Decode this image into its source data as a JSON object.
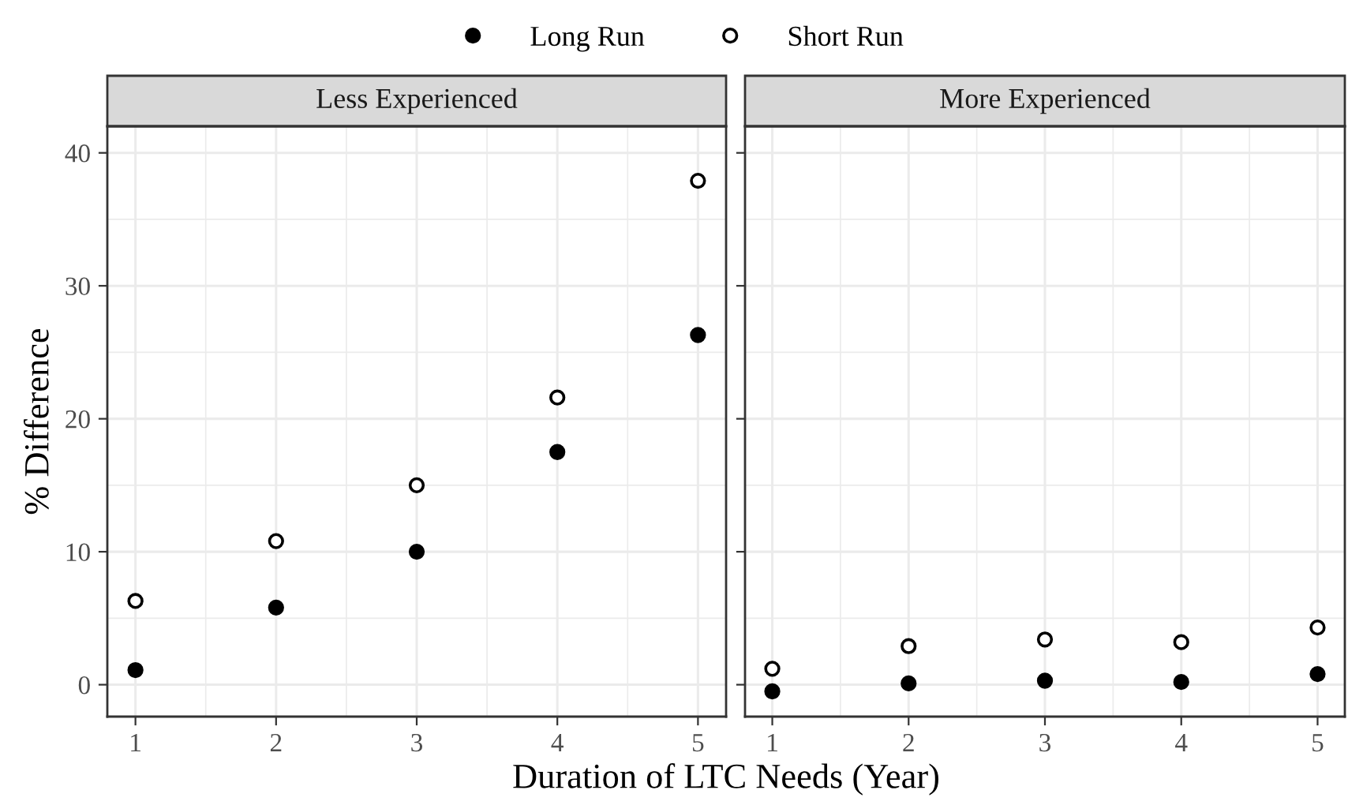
{
  "chart_data": [
    {
      "type": "scatter",
      "title": "Less Experienced",
      "xlabel": "Duration of LTC Needs (Year)",
      "ylabel": "% Difference",
      "x": [
        1,
        2,
        3,
        4,
        5
      ],
      "xlim": [
        0.8,
        5.2
      ],
      "xticks": [
        1,
        2,
        3,
        4,
        5
      ],
      "ylim": [
        -2.4,
        42
      ],
      "yticks": [
        0,
        10,
        20,
        30,
        40
      ],
      "grid": true,
      "marker": "circle",
      "legend": "top",
      "series": [
        {
          "name": "Long Run",
          "color": "#000000",
          "values": [
            1.1,
            5.8,
            10.0,
            17.5,
            26.3
          ]
        },
        {
          "name": "Short Run",
          "color": "#ffffff",
          "values": [
            6.3,
            10.8,
            15.0,
            21.6,
            37.9
          ]
        }
      ]
    },
    {
      "type": "scatter",
      "title": "More Experienced",
      "x": [
        1,
        2,
        3,
        4,
        5
      ],
      "xlim": [
        0.8,
        5.2
      ],
      "xticks": [
        1,
        2,
        3,
        4,
        5
      ],
      "ylim": [
        -2.4,
        42
      ],
      "yticks": [
        0,
        10,
        20,
        30,
        40
      ],
      "grid": true,
      "marker": "circle",
      "tick_labels": "x",
      "series": [
        {
          "color": "#000000",
          "values": [
            -0.5,
            0.1,
            0.3,
            0.2,
            0.8
          ]
        },
        {
          "color": "#ffffff",
          "values": [
            1.2,
            2.9,
            3.4,
            3.2,
            4.3
          ]
        }
      ]
    }
  ]
}
